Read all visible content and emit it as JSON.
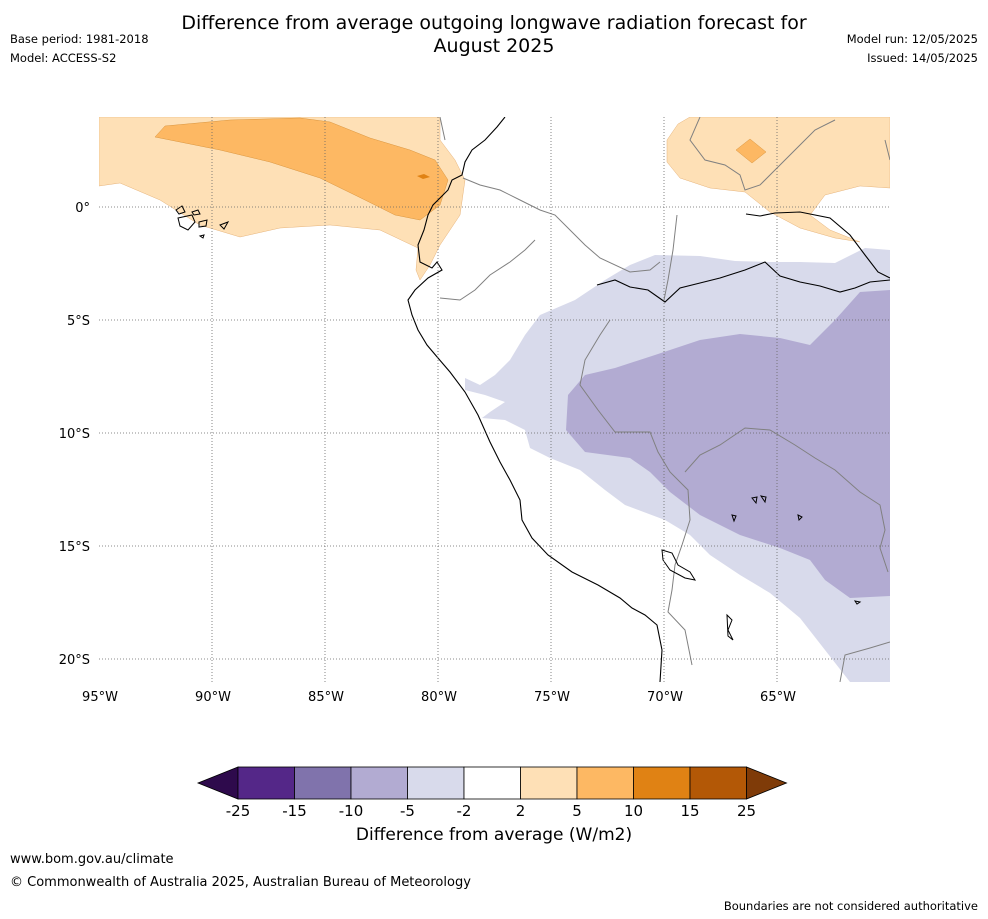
{
  "header": {
    "title_line1": "Difference from average outgoing longwave radiation forecast for",
    "title_line2": "August 2025",
    "base_period": "Base period: 1981-2018",
    "model": "Model: ACCESS-S2",
    "model_run": "Model run: 12/05/2025",
    "issued": "Issued: 14/05/2025"
  },
  "map": {
    "region": "Western South America",
    "lon_range": [
      -95,
      -60
    ],
    "lat_range": [
      -21,
      4
    ],
    "lat_ticks": [
      "0°",
      "5°S",
      "10°S",
      "15°S",
      "20°S"
    ],
    "lon_ticks": [
      "95°W",
      "90°W",
      "85°W",
      "80°W",
      "75°W",
      "70°W",
      "65°W"
    ],
    "gridlines": true
  },
  "colorbar": {
    "label": "Difference from average (W/m2)",
    "ticks": [
      "-25",
      "-15",
      "-10",
      "-5",
      "-2",
      "2",
      "5",
      "10",
      "15",
      "25"
    ],
    "colors": [
      "#2e0a4c",
      "#542788",
      "#8073ac",
      "#b2abd2",
      "#d8daeb",
      "#ffffff",
      "#fee0b6",
      "#fdb863",
      "#e08214",
      "#b35806",
      "#7f3b08"
    ],
    "extend": "both"
  },
  "footer": {
    "url": "www.bom.gov.au/climate",
    "copyright": "© Commonwealth of Australia 2025, Australian Bureau of Meteorology",
    "note": "Boundaries are not considered authoritative"
  }
}
